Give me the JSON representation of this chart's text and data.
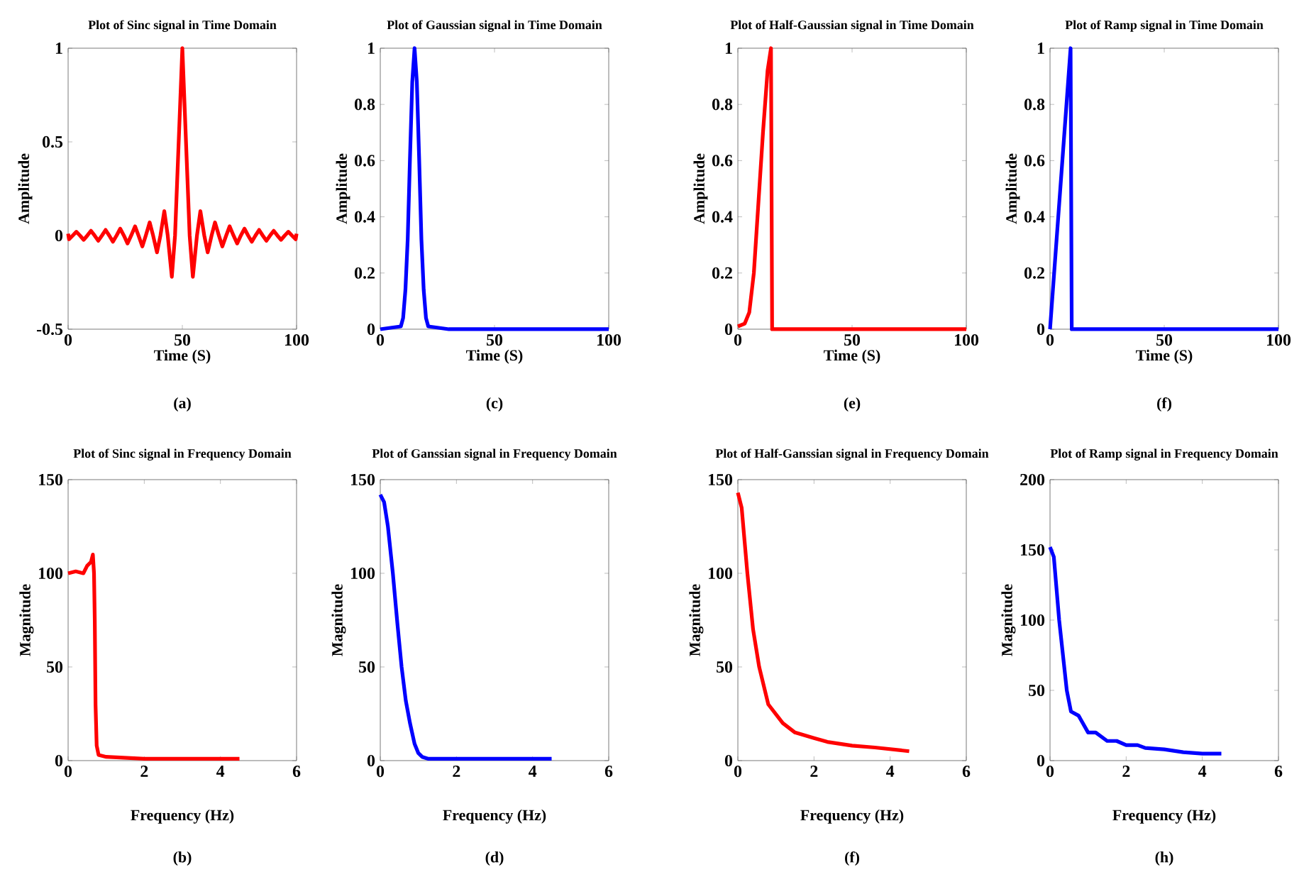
{
  "chart_data": [
    {
      "type": "line",
      "title": "Plot of Sinc signal in Time Domain",
      "xlabel": "Time (S)",
      "ylabel": "Amplitude",
      "annotations": [
        "(a)"
      ],
      "x": [
        0,
        0.4,
        2,
        3.6,
        5.2,
        6.8,
        8.4,
        10,
        11.6,
        13.2,
        14.8,
        16.4,
        18,
        19.6,
        21.2,
        22.8,
        24.4,
        26,
        27.6,
        29.3,
        30.8,
        32.5,
        34,
        35.7,
        37.2,
        38.9,
        40.4,
        42.1,
        43.6,
        45.4,
        46.8,
        50,
        53.2,
        54.6,
        56.4,
        57.9,
        59.6,
        61.1,
        62.8,
        64.3,
        66,
        67.5,
        69.2,
        70.7,
        72.4,
        74,
        75.6,
        77.2,
        78.8,
        80.4,
        82,
        83.6,
        85.2,
        86.8,
        88.4,
        90,
        91.6,
        93.2,
        94.8,
        96.4,
        98,
        99.6,
        100
      ],
      "series": [
        {
          "color": "#ff0000",
          "values": [
            0.01,
            -0.02,
            0,
            0.02,
            0,
            -0.023,
            0,
            0.025,
            0,
            -0.028,
            0,
            0.03,
            0,
            -0.033,
            0,
            0.037,
            0,
            -0.042,
            0,
            0.049,
            0,
            -0.058,
            0,
            0.07,
            0,
            -0.09,
            0,
            0.13,
            0,
            -0.22,
            0,
            1,
            0,
            -0.22,
            0,
            0.13,
            0,
            -0.09,
            0,
            0.07,
            0,
            -0.058,
            0,
            0.049,
            0,
            -0.042,
            0,
            0.037,
            0,
            -0.033,
            0,
            0.03,
            0,
            -0.028,
            0,
            0.025,
            0,
            -0.023,
            0,
            0.02,
            0,
            -0.02,
            0.01
          ]
        }
      ],
      "xlim": [
        0,
        100
      ],
      "ylim": [
        -0.5,
        1
      ],
      "xticks": [
        0,
        50,
        100
      ],
      "yticks": [
        -0.5,
        0,
        0.5,
        1
      ]
    },
    {
      "type": "line",
      "title": "Plot of Gaussian signal in Time Domain",
      "xlabel": "Time (S)",
      "ylabel": "Amplitude",
      "annotations": [
        "(c)"
      ],
      "x": [
        0,
        9,
        10,
        11,
        12,
        13,
        14,
        15,
        16,
        17,
        18,
        19,
        20,
        21,
        30,
        100
      ],
      "series": [
        {
          "color": "#0000ff",
          "values": [
            0,
            0.01,
            0.04,
            0.14,
            0.32,
            0.61,
            0.88,
            1,
            0.88,
            0.61,
            0.32,
            0.14,
            0.04,
            0.01,
            0,
            0
          ]
        }
      ],
      "xlim": [
        0,
        100
      ],
      "ylim": [
        0,
        1
      ],
      "xticks": [
        0,
        50,
        100
      ],
      "yticks": [
        0,
        0.2,
        0.4,
        0.6,
        0.8,
        1
      ]
    },
    {
      "type": "line",
      "title": "Plot of Half-Gaussian signal in Time Domain",
      "xlabel": "Time (S)",
      "ylabel": "Amplitude",
      "annotations": [
        "(e)"
      ],
      "x": [
        0,
        3,
        5,
        7,
        9,
        11,
        13,
        14.5,
        15,
        100
      ],
      "series": [
        {
          "color": "#ff0000",
          "values": [
            0.01,
            0.02,
            0.06,
            0.2,
            0.45,
            0.7,
            0.92,
            1,
            0,
            0
          ]
        }
      ],
      "xlim": [
        0,
        100
      ],
      "ylim": [
        0,
        1
      ],
      "xticks": [
        0,
        50,
        100
      ],
      "yticks": [
        0,
        0.2,
        0.4,
        0.6,
        0.8,
        1
      ]
    },
    {
      "type": "line",
      "title": "Plot of Ramp signal in Time Domain",
      "xlabel": "Time (S)",
      "ylabel": "Amplitude",
      "annotations": [
        "(f)"
      ],
      "x": [
        0,
        9,
        9.5,
        100
      ],
      "series": [
        {
          "color": "#0000ff",
          "values": [
            0,
            1,
            0,
            0
          ]
        }
      ],
      "xlim": [
        0,
        100
      ],
      "ylim": [
        0,
        1
      ],
      "xticks": [
        0,
        50,
        100
      ],
      "yticks": [
        0,
        0.2,
        0.4,
        0.6,
        0.8,
        1
      ]
    },
    {
      "type": "line",
      "title": "Plot of Sinc signal in Frequency Domain",
      "xlabel": "Frequency (Hz)",
      "ylabel": "Magnitude",
      "annotations": [
        "(b)"
      ],
      "x": [
        0,
        0.2,
        0.4,
        0.5,
        0.6,
        0.65,
        0.68,
        0.7,
        0.72,
        0.75,
        0.8,
        1,
        2,
        4.5
      ],
      "series": [
        {
          "color": "#ff0000",
          "values": [
            100,
            101,
            100,
            104,
            106,
            110,
            100,
            75,
            30,
            8,
            3,
            2,
            1,
            1
          ]
        }
      ],
      "xlim": [
        0,
        6
      ],
      "ylim": [
        0,
        150
      ],
      "xticks": [
        0,
        2,
        4,
        6
      ],
      "yticks": [
        0,
        50,
        100,
        150
      ]
    },
    {
      "type": "line",
      "title": "Plot of Ganssian signal in Frequency Domain",
      "xlabel": "Frequency (Hz)",
      "ylabel": "Magnitude",
      "annotations": [
        "(d)"
      ],
      "x": [
        0,
        0.1,
        0.2,
        0.33,
        0.45,
        0.56,
        0.67,
        0.78,
        0.9,
        1.0,
        1.1,
        1.25,
        2,
        4.5
      ],
      "series": [
        {
          "color": "#0000ff",
          "values": [
            142,
            138,
            125,
            100,
            73,
            50,
            32,
            20,
            9,
            4,
            2,
            1,
            1,
            1
          ]
        }
      ],
      "xlim": [
        0,
        6
      ],
      "ylim": [
        0,
        150
      ],
      "xticks": [
        0,
        2,
        4,
        6
      ],
      "yticks": [
        0,
        50,
        100,
        150
      ]
    },
    {
      "type": "line",
      "title": "Plot of Half-Ganssian signal in Frequency Domain",
      "xlabel": "Frequency (Hz)",
      "ylabel": "Magnitude",
      "annotations": [
        "(f)"
      ],
      "x": [
        0,
        0.1,
        0.25,
        0.4,
        0.56,
        0.8,
        1.18,
        1.5,
        2,
        2.35,
        3,
        3.6,
        4.5
      ],
      "series": [
        {
          "color": "#ff0000",
          "values": [
            143,
            135,
            100,
            70,
            50,
            30,
            20,
            15,
            12,
            10,
            8,
            7,
            5
          ]
        }
      ],
      "xlim": [
        0,
        6
      ],
      "ylim": [
        0,
        150
      ],
      "xticks": [
        0,
        2,
        4,
        6
      ],
      "yticks": [
        0,
        50,
        100,
        150
      ]
    },
    {
      "type": "line",
      "title": "Plot of Ramp signal in Frequency Domain",
      "xlabel": "Frequency (Hz)",
      "ylabel": "Magnitude",
      "annotations": [
        "(h)"
      ],
      "x": [
        0,
        0.1,
        0.24,
        0.44,
        0.55,
        0.75,
        1.0,
        1.2,
        1.5,
        1.75,
        2,
        2.3,
        2.5,
        3,
        3.5,
        4,
        4.5
      ],
      "series": [
        {
          "color": "#0000ff",
          "values": [
            152,
            145,
            100,
            50,
            35,
            32,
            20,
            20,
            14,
            14,
            11,
            11,
            9,
            8,
            6,
            5,
            5
          ]
        }
      ],
      "xlim": [
        0,
        6
      ],
      "ylim": [
        0,
        200
      ],
      "xticks": [
        0,
        2,
        4,
        6
      ],
      "yticks": [
        0,
        50,
        100,
        150,
        200
      ]
    }
  ]
}
